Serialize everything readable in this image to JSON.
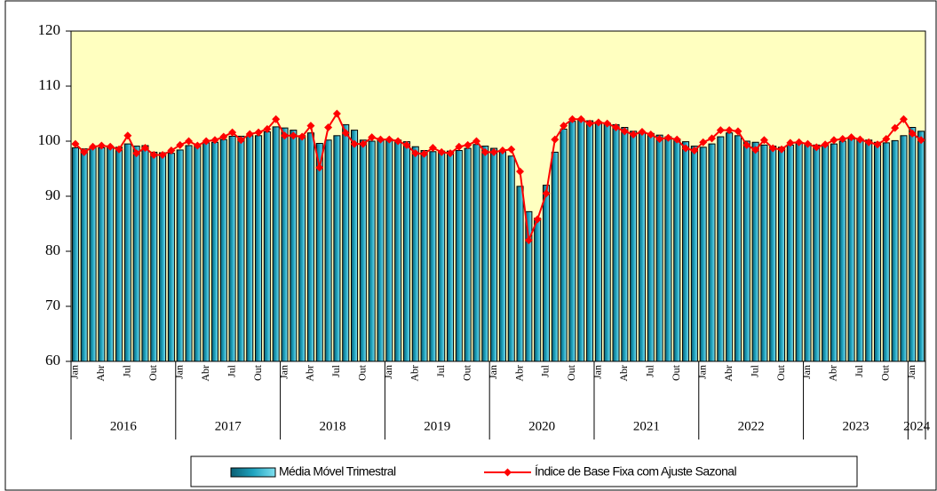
{
  "chart_data": {
    "type": "bar_line",
    "categories": [
      "Jan",
      null,
      null,
      "Abr",
      null,
      null,
      "Jul",
      null,
      null,
      "Out",
      null,
      null,
      "Jan",
      null,
      null,
      "Abr",
      null,
      null,
      "Jul",
      null,
      null,
      "Out",
      null,
      null,
      "Jan",
      null,
      null,
      "Abr",
      null,
      null,
      "Jul",
      null,
      null,
      "Out",
      null,
      null,
      "Jan",
      null,
      null,
      "Abr",
      null,
      null,
      "Jul",
      null,
      null,
      "Out",
      null,
      null,
      "Jan",
      null,
      null,
      "Abr",
      null,
      null,
      "Jul",
      null,
      null,
      "Out",
      null,
      null,
      "Jan",
      null,
      null,
      "Abr",
      null,
      null,
      "Jul",
      null,
      null,
      "Out",
      null,
      null,
      "Jan",
      null,
      null,
      "Abr",
      null,
      null,
      "Jul",
      null,
      null,
      "Out",
      null,
      null,
      "Jan",
      null,
      null,
      "Abr",
      null,
      null,
      "Jul",
      null,
      null,
      "Out",
      null,
      null,
      "Jan",
      null
    ],
    "years": [
      "2016",
      "2017",
      "2018",
      "2019",
      "2020",
      "2021",
      "2022",
      "2023",
      "2024"
    ],
    "series": [
      {
        "name": "Média Móvel Trimestral",
        "kind": "bar",
        "color": "#1fa3bf",
        "values": [
          98.8,
          98.6,
          98.8,
          98.8,
          99,
          98.9,
          99.5,
          99.1,
          99.2,
          98,
          97.9,
          97.8,
          98.4,
          99.2,
          99.5,
          99.7,
          99.8,
          100.3,
          100.9,
          100.9,
          101,
          101,
          101.7,
          102.6,
          102.4,
          102,
          101,
          101.5,
          99.6,
          100.2,
          101,
          103,
          102,
          100.2,
          100,
          100.2,
          100.4,
          100.2,
          99.9,
          99,
          98.3,
          98.1,
          98.2,
          98.2,
          98.3,
          98.7,
          99.4,
          99.1,
          98.7,
          98.1,
          97.3,
          91.8,
          87.2,
          86,
          92,
          98,
          102.2,
          103.6,
          104,
          103.7,
          103.5,
          103.3,
          103,
          102.5,
          101.8,
          101.6,
          101.4,
          101.1,
          100.8,
          100.4,
          99.9,
          99.1,
          98.9,
          99.5,
          100.8,
          101.5,
          101,
          100,
          99.8,
          99.3,
          99.1,
          98.9,
          99.3,
          99.6,
          99.6,
          99.3,
          99.3,
          99.5,
          100,
          100.4,
          100.4,
          100.2,
          99.8,
          99.7,
          100.1,
          101,
          102.5,
          101.8
        ]
      },
      {
        "name": "Índice de Base Fixa com Ajuste Sazonal",
        "kind": "line",
        "color": "#ff0000",
        "values": [
          99.5,
          98,
          99,
          99.2,
          99,
          98.5,
          101,
          97.8,
          98.8,
          97.5,
          97.5,
          98.3,
          99.3,
          100,
          99.2,
          100,
          100.2,
          100.8,
          101.6,
          100.2,
          101.3,
          101.6,
          102.2,
          104,
          101,
          101,
          100.8,
          102.8,
          95.2,
          102.5,
          105,
          101.5,
          99.5,
          99.5,
          100.7,
          100.3,
          100.3,
          100,
          99.3,
          97.8,
          97.7,
          98.8,
          98,
          97.8,
          99,
          99.3,
          100,
          98,
          98,
          98.3,
          98.5,
          94.5,
          82,
          85.8,
          90.5,
          100.3,
          102.8,
          104,
          104,
          103.2,
          103.4,
          103.2,
          102.5,
          101.8,
          101.2,
          101.7,
          101.2,
          100.4,
          100.6,
          100.3,
          98.7,
          98.3,
          99.8,
          100.5,
          102,
          102,
          101.8,
          99.3,
          98.4,
          100.2,
          98.7,
          98.5,
          99.7,
          99.8,
          99.5,
          98.9,
          99.4,
          100.2,
          100.4,
          100.7,
          100.3,
          99.8,
          99.4,
          100.4,
          102.4,
          104,
          101.4,
          100.2
        ]
      }
    ],
    "ylim": [
      60,
      120
    ],
    "yticks": [
      60,
      70,
      80,
      90,
      100,
      110,
      120
    ],
    "plot_background": "#ffffc0"
  }
}
